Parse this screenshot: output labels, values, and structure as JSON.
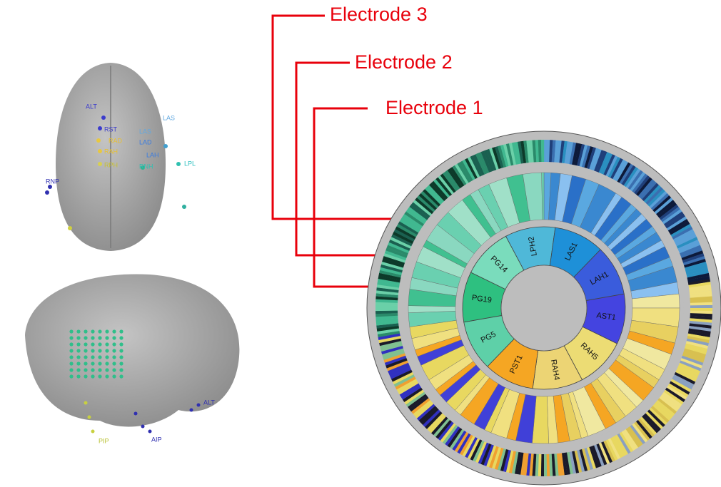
{
  "electrode_labels": [
    "Electrode 3",
    "Electrode 2",
    "Electrode 1"
  ],
  "top_brain_labels": [
    "ALT",
    "RST",
    "RAD",
    "RAH",
    "RPH",
    "RNP",
    "LAS",
    "LAS",
    "LAD",
    "LAH",
    "RNH",
    "LPL"
  ],
  "side_brain_labels": [
    "ALT",
    "AIP",
    "PIP"
  ],
  "ring_labels": [
    "LPH2",
    "LAS1",
    "LAH1",
    "AST1",
    "RAH5",
    "RAH4",
    "PST1",
    "PG5",
    "PG19",
    "PG14"
  ]
}
